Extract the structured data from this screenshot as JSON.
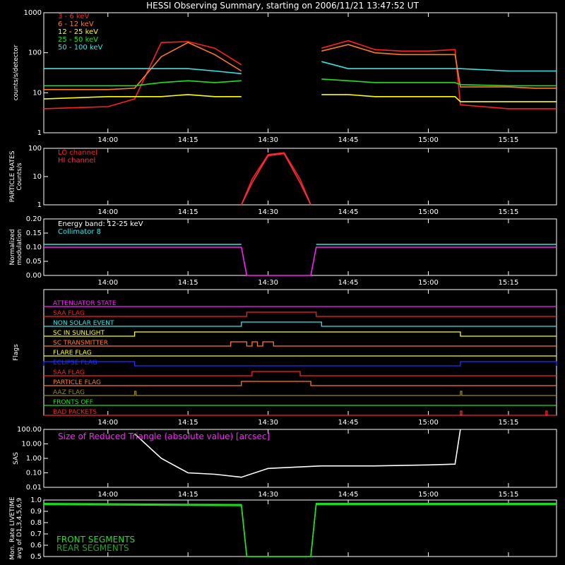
{
  "title": "HESSI Observing Summary, starting on 2006/11/21 13:47:52 UT",
  "colors": {
    "red": "#ff2020",
    "orange": "#ff7a20",
    "yellow": "#ffff00",
    "green": "#20e020",
    "cyan": "#33e6e6",
    "magenta": "#ff20ff",
    "blue": "#2030ff",
    "olive": "#9a8a00",
    "white": "#ffffff",
    "crimson": "#ff2a4a"
  },
  "time_ticks": [
    "14:00",
    "14:15",
    "14:30",
    "14:45",
    "15:00",
    "15:15"
  ],
  "time_tick_minutes": [
    -12.13,
    2.87,
    17.87,
    32.87,
    47.87,
    62.87
  ],
  "chart_data": [
    {
      "type": "line",
      "ylabel": "counts/s/detector",
      "yscale": "log",
      "ylim": [
        1,
        1000
      ],
      "yticks": [
        "1",
        "10",
        "100",
        "1000"
      ],
      "legend": [
        "3 - 6 keV",
        "6 - 12 keV",
        "12 - 25 keV",
        "25 - 50 keV",
        "50 - 100 keV"
      ],
      "x": [
        "13:48",
        "14:00",
        "14:05",
        "14:10",
        "14:15",
        "14:20",
        "14:25",
        "14:26",
        "14:38",
        "14:40",
        "14:45",
        "14:50",
        "14:55",
        "15:00",
        "15:05",
        "15:06",
        "15:15",
        "15:20",
        "15:24"
      ],
      "series": [
        {
          "name": "3 - 6 keV",
          "color": "red",
          "values": [
            4,
            4.5,
            7,
            180,
            190,
            130,
            50,
            null,
            null,
            130,
            200,
            120,
            110,
            110,
            120,
            5,
            4,
            4,
            4
          ]
        },
        {
          "name": "6 - 12 keV",
          "color": "orange",
          "values": [
            12,
            12,
            13,
            80,
            180,
            90,
            35,
            null,
            null,
            110,
            160,
            100,
            90,
            90,
            90,
            14,
            14,
            13,
            13
          ]
        },
        {
          "name": "12 - 25 keV",
          "color": "yellow",
          "values": [
            7,
            8,
            8,
            8,
            9,
            8,
            8,
            null,
            null,
            9,
            9,
            8,
            8,
            8,
            8,
            6,
            6,
            6,
            6
          ]
        },
        {
          "name": "25 - 50 keV",
          "color": "green",
          "values": [
            15,
            15,
            15,
            18,
            20,
            18,
            20,
            null,
            null,
            22,
            20,
            18,
            18,
            18,
            18,
            16,
            15,
            15,
            15
          ]
        },
        {
          "name": "50 - 100 keV",
          "color": "cyan",
          "values": [
            40,
            40,
            40,
            40,
            40,
            35,
            30,
            null,
            null,
            60,
            40,
            40,
            40,
            40,
            40,
            40,
            35,
            35,
            35
          ]
        }
      ]
    },
    {
      "type": "line",
      "ylabel": "PARTICLE RATES Counts/s",
      "yscale": "log",
      "ylim": [
        1,
        100
      ],
      "yticks": [
        "1",
        "10",
        "100"
      ],
      "legend": [
        "LO channel",
        "HI channel"
      ],
      "x": [
        "14:25",
        "14:27",
        "14:30",
        "14:33",
        "14:36",
        "14:38"
      ],
      "series": [
        {
          "name": "LO channel",
          "color": "red",
          "values": [
            1,
            8,
            60,
            70,
            8,
            1
          ]
        },
        {
          "name": "HI channel",
          "color": "crimson",
          "values": [
            1,
            6,
            55,
            65,
            6,
            1
          ]
        }
      ]
    },
    {
      "type": "line",
      "ylabel": "Normalized modulation",
      "ylim": [
        0,
        0.2
      ],
      "yticks": [
        "0.00",
        "0.05",
        "0.10",
        "0.15",
        "0.20"
      ],
      "legend": [
        "Energy band: 12-25 keV",
        "Collimator 8"
      ],
      "x": [
        "13:48",
        "14:25",
        "14:26",
        "14:38",
        "14:39",
        "15:24"
      ],
      "series": [
        {
          "name": "Energy band: 12-25 keV",
          "color": "magenta",
          "values": [
            0.1,
            0.1,
            0,
            0,
            0.1,
            0.1
          ]
        },
        {
          "name": "Collimator 8",
          "color": "cyan",
          "values": [
            0.11,
            0.11,
            null,
            null,
            0.11,
            0.11
          ]
        }
      ]
    },
    {
      "type": "timeline",
      "ylabel": "Flags",
      "flags": [
        {
          "name": "ATTENUATOR STATE",
          "color": "magenta",
          "on": []
        },
        {
          "name": "SAA FLAG",
          "color": "red",
          "on": [
            [
              "14:26",
              "14:39"
            ]
          ]
        },
        {
          "name": "NON SOLAR EVENT",
          "color": "cyan",
          "on": [
            [
              "14:25",
              "14:40"
            ]
          ]
        },
        {
          "name": "SC IN SUNLIGHT",
          "color": "yellow",
          "on": [
            [
              "14:05",
              "15:06"
            ]
          ]
        },
        {
          "name": "SC TRANSMITTER",
          "color": "orange",
          "on": [
            [
              "14:23",
              "14:26"
            ],
            [
              "14:27",
              "14:28"
            ],
            [
              "14:29",
              "14:31"
            ]
          ]
        },
        {
          "name": "FLARE FLAG",
          "color": "yellow",
          "on": []
        },
        {
          "name": "ECLIPSE FLAG",
          "color": "blue",
          "on": [
            [
              "13:48",
              "14:05"
            ],
            [
              "15:06",
              "15:24"
            ]
          ]
        },
        {
          "name": "SAA FLAG",
          "color": "red",
          "on": [
            [
              "14:27",
              "14:36"
            ]
          ]
        },
        {
          "name": "PARTICLE FLAG",
          "color": "orange",
          "on": [
            [
              "14:25",
              "14:38"
            ]
          ]
        },
        {
          "name": "AAZ FLAG",
          "color": "olive",
          "on": [
            [
              "14:05",
              "14:05"
            ],
            [
              "15:06",
              "15:06"
            ]
          ]
        },
        {
          "name": "FRONTS OFF",
          "color": "green",
          "on": []
        },
        {
          "name": "BAD PACKETS",
          "color": "red",
          "on": [
            [
              "15:06",
              "15:06"
            ],
            [
              "15:22",
              "15:22"
            ]
          ]
        }
      ]
    },
    {
      "type": "line",
      "ylabel": "SAS",
      "yscale": "log",
      "ylim": [
        0.01,
        100
      ],
      "yticks": [
        "0.01",
        "0.10",
        "1.00",
        "10.00",
        "100.00"
      ],
      "legend": [
        "Size of Reduced Triangle (absolute value) [arcsec]"
      ],
      "x": [
        "14:05",
        "14:10",
        "14:15",
        "14:20",
        "14:25",
        "14:30",
        "14:40",
        "14:50",
        "15:00",
        "15:05",
        "15:06"
      ],
      "series": [
        {
          "name": "Size of Reduced Triangle (absolute value) [arcsec]",
          "color": "white",
          "values": [
            50,
            1,
            0.1,
            0.08,
            0.05,
            0.2,
            0.3,
            0.3,
            0.35,
            0.4,
            100
          ]
        }
      ]
    },
    {
      "type": "line",
      "ylabel": "Mon. Rate LIVETIME avg of D1,3,4,5,6,9",
      "ylim": [
        0.5,
        1.0
      ],
      "yticks": [
        "0.5",
        "0.6",
        "0.7",
        "0.8",
        "0.9",
        "1.0"
      ],
      "legend": [
        "FRONT SEGMENTS",
        "REAR SEGMENTS"
      ],
      "x": [
        "13:48",
        "14:25",
        "14:26",
        "14:38",
        "14:39",
        "15:24"
      ],
      "series": [
        {
          "name": "FRONT SEGMENTS",
          "color": "green",
          "values": [
            0.97,
            0.96,
            0.5,
            0.5,
            0.97,
            0.97
          ]
        },
        {
          "name": "REAR SEGMENTS",
          "color": "green",
          "values": [
            0.96,
            0.95,
            0.5,
            0.5,
            0.96,
            0.96
          ]
        }
      ]
    }
  ]
}
